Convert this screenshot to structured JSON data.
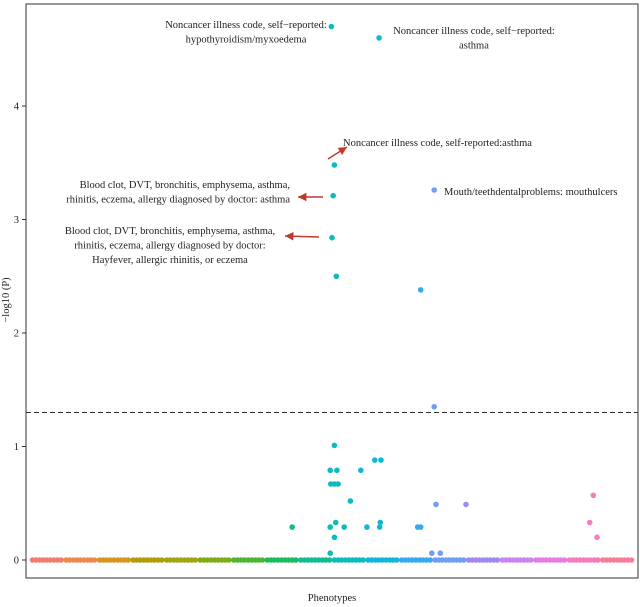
{
  "chart_data": {
    "type": "scatter",
    "title": "",
    "xlabel": "Phenotypes",
    "ylabel": "−log10 (P)",
    "ylim": [
      -0.1,
      4.85
    ],
    "yticks": [
      "0",
      "1",
      "2",
      "3",
      "4"
    ],
    "threshold": 1.3,
    "group_colors": [
      "#f27b72",
      "#ea8a52",
      "#d6951f",
      "#b49b09",
      "#a0a511",
      "#7fad1a",
      "#4eb52e",
      "#1dbb61",
      "#10bd8f",
      "#0bbcbb",
      "#12b6d9",
      "#38a9ee",
      "#6f9ef5",
      "#a089f3",
      "#c884ef",
      "#e57ce0",
      "#f47bbc",
      "#f87c97"
    ],
    "baseline": {
      "y": 0.0,
      "groups": 18
    },
    "points": [
      {
        "x": 0.499,
        "y": 4.7,
        "g": 9
      },
      {
        "x": 0.577,
        "y": 4.6,
        "g": 10
      },
      {
        "x": 0.504,
        "y": 3.48,
        "g": 9
      },
      {
        "x": 0.502,
        "y": 3.21,
        "g": 9
      },
      {
        "x": 0.5,
        "y": 2.84,
        "g": 9
      },
      {
        "x": 0.507,
        "y": 2.5,
        "g": 9
      },
      {
        "x": 0.667,
        "y": 3.26,
        "g": 12
      },
      {
        "x": 0.645,
        "y": 2.38,
        "g": 11
      },
      {
        "x": 0.667,
        "y": 1.35,
        "g": 12
      },
      {
        "x": 0.504,
        "y": 1.01,
        "g": 9
      },
      {
        "x": 0.497,
        "y": 0.79,
        "g": 9
      },
      {
        "x": 0.508,
        "y": 0.79,
        "g": 9
      },
      {
        "x": 0.547,
        "y": 0.79,
        "g": 10
      },
      {
        "x": 0.57,
        "y": 0.88,
        "g": 10
      },
      {
        "x": 0.58,
        "y": 0.88,
        "g": 10
      },
      {
        "x": 0.498,
        "y": 0.67,
        "g": 9
      },
      {
        "x": 0.504,
        "y": 0.67,
        "g": 9
      },
      {
        "x": 0.51,
        "y": 0.67,
        "g": 9
      },
      {
        "x": 0.53,
        "y": 0.52,
        "g": 9
      },
      {
        "x": 0.67,
        "y": 0.49,
        "g": 12
      },
      {
        "x": 0.719,
        "y": 0.49,
        "g": 13
      },
      {
        "x": 0.927,
        "y": 0.57,
        "g": 16
      },
      {
        "x": 0.435,
        "y": 0.29,
        "g": 8
      },
      {
        "x": 0.497,
        "y": 0.29,
        "g": 9
      },
      {
        "x": 0.506,
        "y": 0.33,
        "g": 9
      },
      {
        "x": 0.52,
        "y": 0.29,
        "g": 9
      },
      {
        "x": 0.557,
        "y": 0.29,
        "g": 10
      },
      {
        "x": 0.578,
        "y": 0.29,
        "g": 10
      },
      {
        "x": 0.579,
        "y": 0.33,
        "g": 10
      },
      {
        "x": 0.64,
        "y": 0.29,
        "g": 11
      },
      {
        "x": 0.645,
        "y": 0.29,
        "g": 11
      },
      {
        "x": 0.921,
        "y": 0.33,
        "g": 16
      },
      {
        "x": 0.933,
        "y": 0.2,
        "g": 16
      },
      {
        "x": 0.504,
        "y": 0.2,
        "g": 9
      },
      {
        "x": 0.497,
        "y": 0.06,
        "g": 9
      },
      {
        "x": 0.663,
        "y": 0.06,
        "g": 12
      },
      {
        "x": 0.677,
        "y": 0.06,
        "g": 12
      }
    ],
    "annotations": [
      {
        "lines": [
          "Noncancer illness code, self−reported:",
          "hypothyroidism/myxoedema"
        ],
        "anchor": "middle"
      },
      {
        "lines": [
          "Noncancer illness code, self−reported:",
          "asthma"
        ],
        "anchor": "middle"
      },
      {
        "lines": [
          "Noncancer illness code, self-reported:asthma"
        ],
        "anchor": "start"
      },
      {
        "lines": [
          "Blood clot, DVT, bronchitis, emphysema, asthma,",
          "rhinitis, eczema, allergy diagnosed by doctor: asthma"
        ],
        "anchor": "end"
      },
      {
        "lines": [
          "Blood clot, DVT, bronchitis, emphysema, asthma,",
          "rhinitis, eczema, allergy diagnosed by doctor:",
          "Hayfever, allergic rhinitis, or eczema"
        ],
        "anchor": "middle"
      },
      {
        "lines": [
          "Mouth/teethdentalproblems: mouthulcers"
        ],
        "anchor": "start"
      }
    ]
  }
}
